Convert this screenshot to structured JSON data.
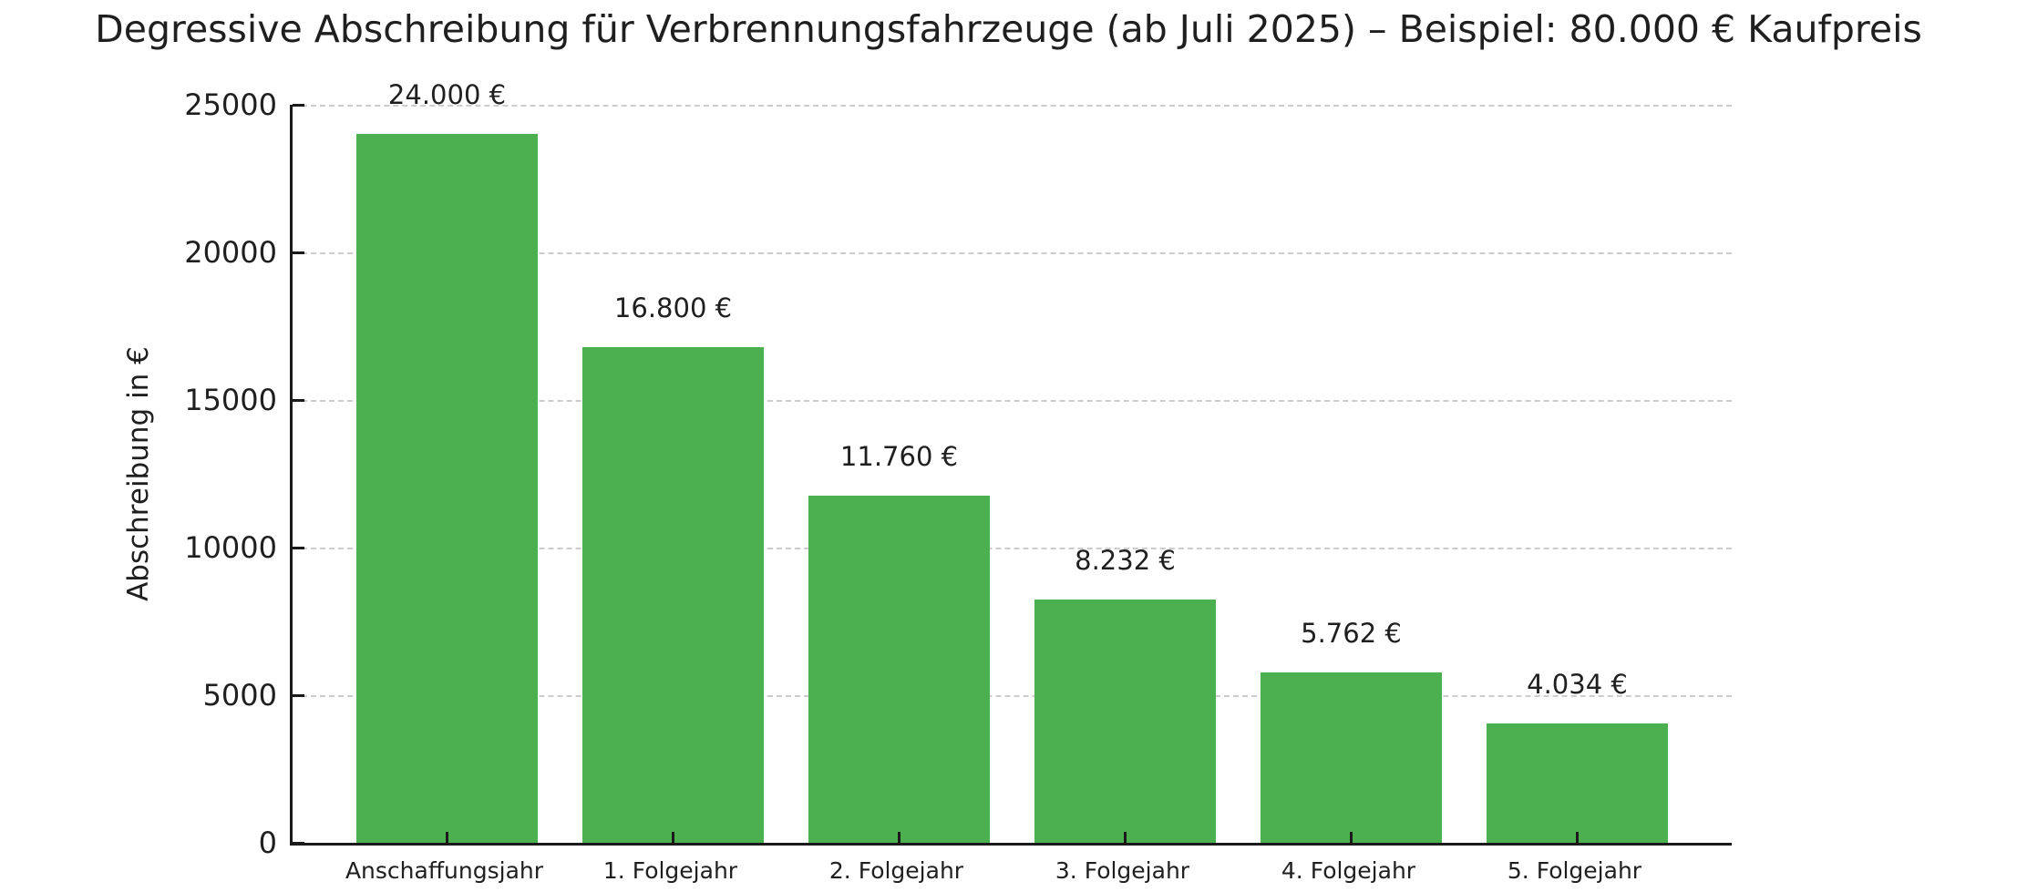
{
  "figure": {
    "background": "#ffffff"
  },
  "chart_data": {
    "type": "bar",
    "title": "Degressive Abschreibung für Verbrennungsfahrzeuge (ab Juli 2025) – Beispiel: 80.000 € Kaufpreis",
    "xlabel": "",
    "ylabel": "Abschreibung in €",
    "categories": [
      "Anschaffungsjahr",
      "1. Folgejahr",
      "2. Folgejahr",
      "3. Folgejahr",
      "4. Folgejahr",
      "5. Folgejahr"
    ],
    "values": [
      24000,
      16800,
      11760,
      8232,
      5762,
      4034
    ],
    "value_labels": [
      "24.000 €",
      "16.800 €",
      "11.760 €",
      "8.232 €",
      "5.762 €",
      "4.034 €"
    ],
    "ylim": [
      0,
      25000
    ],
    "yticks": [
      0,
      5000,
      10000,
      15000,
      20000,
      25000
    ],
    "grid": {
      "axis": "y",
      "style": "dashed",
      "color": "#cccccc"
    },
    "legend": "none",
    "bar_color": "#4caf50",
    "spine_color": "#1a1a1a",
    "text_color": "#1f1f1f"
  }
}
